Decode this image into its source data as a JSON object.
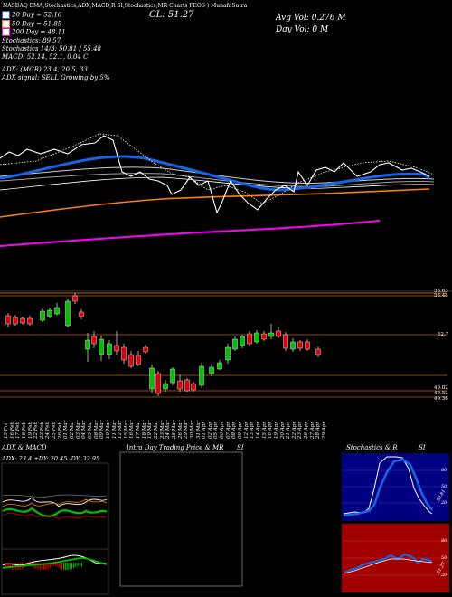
{
  "header": {
    "title_line": "NASDAQ EMA,Stochastics,ADX,MACD,R          SI,Stochastics,MR          Charts FEOS          ) MunafaSutra",
    "cl_label": "CL: 51.27",
    "avg_vol": "Avg Vol: 0.276  M",
    "day_vol": "Day Vol: 0  M"
  },
  "indicators": {
    "ema20": "20  Day = 52.16",
    "ema50": "50  Day = 51.85",
    "ema200": "200  Day = 48.11",
    "stochastics": "Stochastics: 89.57",
    "stoch_kd": "Stochastics 14/3: 50.81 / 55.48",
    "macd": "MACD: 52.14, 52.1, 0.04  C",
    "adx": "ADX:                       (MGR) 23.4,  20.5,  33",
    "adx_signal": "ADX  signal: SELL Growing  by 5%"
  },
  "price_levels": [
    {
      "label": "53.63",
      "value": 53.63
    },
    {
      "label": "53.48",
      "value": 53.48
    },
    {
      "label": "52.7",
      "value": 52.7
    },
    {
      "label": "49.82",
      "value": 49.82
    },
    {
      "label": "49.52",
      "value": 49.52
    },
    {
      "label": "49.36",
      "value": 49.36
    }
  ],
  "dates": [
    "15 Fri",
    "16 Feb",
    "17 Feb",
    "18 Feb",
    "19 Feb",
    "22 Feb",
    "23 Feb",
    "24 Feb",
    "25 Feb",
    "26 Feb",
    "01 Mar",
    "02 Mar",
    "03 Mar",
    "04 Mar",
    "05 Mar",
    "08 Mar",
    "09 Mar",
    "10 Mar",
    "11 Mar",
    "12 Mar",
    "15 Mar",
    "16 Mar",
    "17 Mar",
    "18 Mar",
    "19 Mar",
    "22 Mar",
    "23 Mar",
    "24 Mar",
    "25 Mar",
    "26 Mar",
    "29 Mar",
    "30 Mar",
    "31 Mar",
    "01 Apr",
    "02 Apr",
    "05 Apr",
    "06 Apr",
    "07 Apr",
    "08 Apr",
    "09 Apr",
    "12 Apr",
    "13 Apr",
    "14 Apr",
    "15 Apr",
    "16 Apr",
    "19 Apr",
    "20 Apr",
    "21 Apr",
    "22 Apr",
    "23 Apr",
    "26 Apr",
    "27 Apr",
    "28 Apr",
    "29 Apr"
  ],
  "panels": {
    "adx_title": "ADX  & MACD",
    "adx_values": "ADX: 23.4  +DY: 20.45  -DY: 32.95",
    "intraday_title": "Intra  Day Trading Price  & MR",
    "intraday_si": "SI",
    "stoch_title": "Stochastics & R",
    "stoch_si": "SI",
    "stoch_ticks": [
      "80",
      "50",
      "20"
    ],
    "stoch_value": "50.81",
    "rsi_ticks": [
      "80",
      "50",
      "20"
    ],
    "rsi_value": "51.27"
  },
  "colors": {
    "ema20": "#1565e6",
    "ema50": "#ff8000",
    "ema200": "#ff00ff",
    "up": "#00c000",
    "down": "#e00000",
    "stoch_bg": "#000080",
    "rsi_bg": "#a00000"
  }
}
